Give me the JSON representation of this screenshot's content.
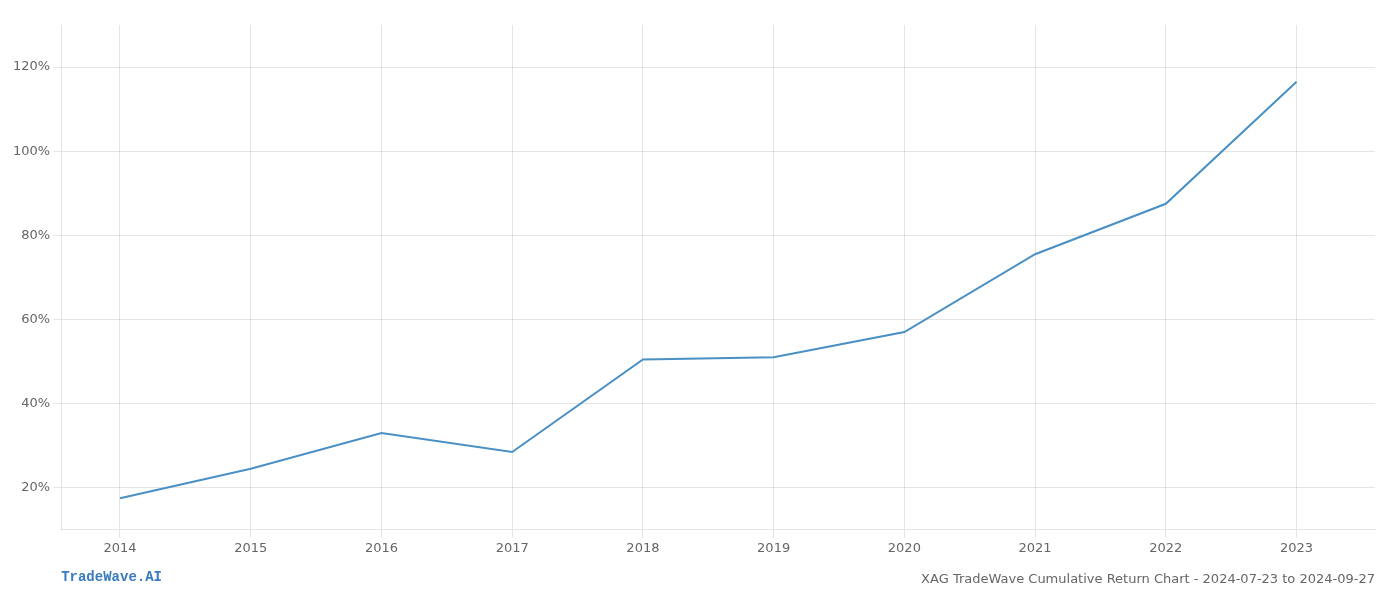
{
  "chart_data": {
    "type": "line",
    "title": "XAG TradeWave Cumulative Return Chart - 2024-07-23 to 2024-09-27",
    "annotations": [
      "TradeWave.AI"
    ],
    "x": [
      2014,
      2015,
      2016,
      2017,
      2018,
      2019,
      2020,
      2021,
      2022,
      2023
    ],
    "values": [
      0.175,
      0.245,
      0.33,
      0.285,
      0.505,
      0.51,
      0.57,
      0.755,
      0.875,
      1.165
    ],
    "color": "#4a90c4",
    "xlim": [
      2013.55,
      2023.6
    ],
    "xticks": [
      2014,
      2015,
      2016,
      2017,
      2018,
      2019,
      2020,
      2021,
      2022,
      2023
    ],
    "ylim": [
      0.1,
      1.3
    ],
    "yticks": [
      {
        "value": 0.2,
        "label": "20%"
      },
      {
        "value": 0.4,
        "label": "40%"
      },
      {
        "value": 0.6,
        "label": "60%"
      },
      {
        "value": 0.8,
        "label": "80%"
      },
      {
        "value": 1.0,
        "label": "100%"
      },
      {
        "value": 1.2,
        "label": "120%"
      }
    ],
    "grid": true
  }
}
